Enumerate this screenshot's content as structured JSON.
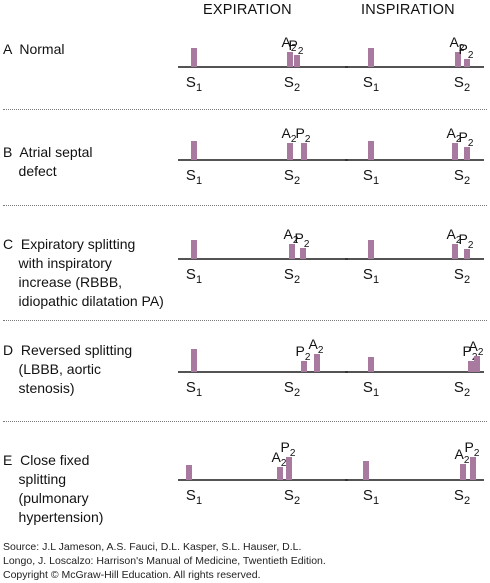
{
  "columns": {
    "expiration": "EXPIRATION",
    "inspiration": "INSPIRATION"
  },
  "bar_color": "#a97aa0",
  "line_color": "#1a1a1a",
  "panels": [
    {
      "letter": "A",
      "label_lines": [
        "A  Normal"
      ],
      "expiration": {
        "sounds": [
          {
            "name": "S1",
            "height": 19,
            "label": ""
          },
          {
            "name": "A2",
            "height": 15,
            "label": "A2"
          },
          {
            "name": "P2",
            "height": 12,
            "label": "P2"
          }
        ]
      },
      "inspiration": {
        "sounds": [
          {
            "name": "S1",
            "height": 19,
            "label": ""
          },
          {
            "name": "A2",
            "height": 15,
            "label": "A2"
          },
          {
            "name": "P2",
            "height": 8,
            "label": "P2"
          }
        ]
      }
    },
    {
      "letter": "B",
      "label_lines": [
        "B  Atrial septal",
        "    defect"
      ],
      "expiration": {
        "sounds": [
          {
            "name": "S1",
            "height": 19,
            "label": ""
          },
          {
            "name": "A2",
            "height": 17,
            "label": "A2"
          },
          {
            "name": "P2",
            "height": 17,
            "label": "P2"
          }
        ]
      },
      "inspiration": {
        "sounds": [
          {
            "name": "S1",
            "height": 19,
            "label": ""
          },
          {
            "name": "A2",
            "height": 17,
            "label": "A2"
          },
          {
            "name": "P2",
            "height": 13,
            "label": "P2"
          }
        ]
      }
    },
    {
      "letter": "C",
      "label_lines": [
        "C  Expiratory splitting",
        "    with inspiratory",
        "    increase (RBBB,",
        "    idiopathic dilatation PA)"
      ],
      "expiration": {
        "sounds": [
          {
            "name": "S1",
            "height": 19,
            "label": ""
          },
          {
            "name": "A2",
            "height": 15,
            "label": "A2"
          },
          {
            "name": "P2",
            "height": 11,
            "label": "P2"
          }
        ]
      },
      "inspiration": {
        "sounds": [
          {
            "name": "S1",
            "height": 19,
            "label": ""
          },
          {
            "name": "A2",
            "height": 15,
            "label": "A2"
          },
          {
            "name": "P2",
            "height": 10,
            "label": "P2"
          }
        ]
      }
    },
    {
      "letter": "D",
      "label_lines": [
        "D  Reversed splitting",
        "    (LBBB, aortic",
        "    stenosis)"
      ],
      "expiration": {
        "sounds": [
          {
            "name": "S1",
            "height": 23,
            "label": ""
          },
          {
            "name": "P2",
            "height": 11,
            "label": "P2"
          },
          {
            "name": "A2",
            "height": 18,
            "label": "A2"
          }
        ]
      },
      "inspiration": {
        "sounds": [
          {
            "name": "S1",
            "height": 15,
            "label": ""
          },
          {
            "name": "P2",
            "height": 11,
            "label": "P2"
          },
          {
            "name": "A2",
            "height": 16,
            "label": "A2"
          }
        ]
      }
    },
    {
      "letter": "E",
      "label_lines": [
        "E  Close fixed",
        "    splitting",
        "    (pulmonary",
        "    hypertension)"
      ],
      "expiration": {
        "sounds": [
          {
            "name": "S1",
            "height": 15,
            "label": ""
          },
          {
            "name": "A2",
            "height": 13,
            "label": "A2"
          },
          {
            "name": "P2",
            "height": 23,
            "label": "P2"
          }
        ]
      },
      "inspiration": {
        "sounds": [
          {
            "name": "S1",
            "height": 19,
            "label": ""
          },
          {
            "name": "A2",
            "height": 16,
            "label": "A2"
          },
          {
            "name": "P2",
            "height": 23,
            "label": "P2"
          }
        ]
      }
    }
  ],
  "axis_labels": {
    "s1": "S1",
    "s2": "S2"
  },
  "source_lines": [
    "Source: J.L Jameson, A.S. Fauci, D.L. Kasper, S.L. Hauser, D.L.",
    "Longo, J. Loscalzo: Harrison's Manual of Medicine, Twentieth Edition.",
    "Copyright © McGraw-Hill Education. All rights reserved."
  ]
}
